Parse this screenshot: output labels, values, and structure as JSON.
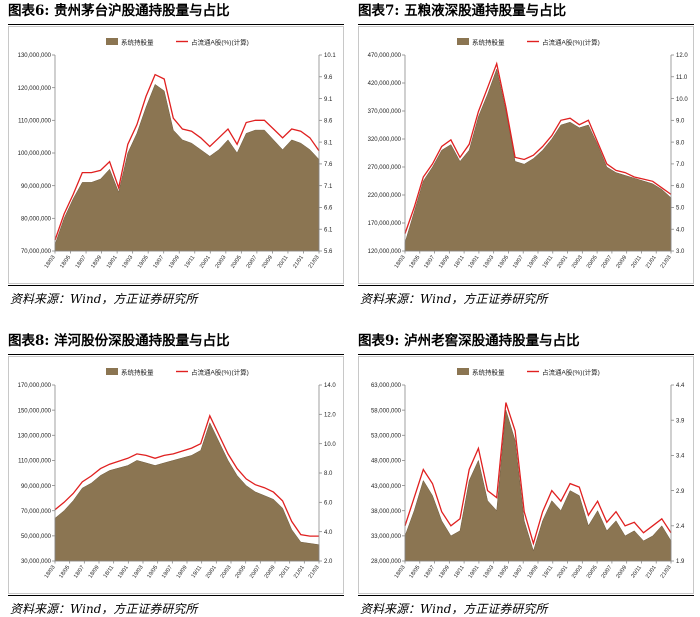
{
  "source_text": "资料来源：Wind，方正证券研究所",
  "panels": [
    {
      "title": "图表6:   贵州茅台沪股通持股量与占比",
      "chart_data": {
        "type": "area",
        "legend": [
          "系统持股量",
          "占流通A股(%)(计算)"
        ],
        "legend_position": "top-center",
        "grid": false,
        "left_axis": {
          "min": 70000000,
          "max": 130000000,
          "ticks": [
            "70,000,000",
            "80,000,000",
            "90,000,000",
            "100,000,000",
            "110,000,000",
            "120,000,000",
            "130,000,000"
          ]
        },
        "right_axis": {
          "min": 5.6,
          "max": 10.1,
          "ticks": [
            "5.6",
            "6.1",
            "6.6",
            "7.1",
            "7.6",
            "8.1",
            "8.6",
            "9.1",
            "9.6",
            "10.1"
          ]
        },
        "x_labels": [
          "18/03",
          "18/05",
          "18/07",
          "18/09",
          "19/01",
          "19/03",
          "19/05",
          "19/07",
          "19/09",
          "19/11",
          "20/01",
          "20/03",
          "20/05",
          "20/07",
          "20/09",
          "20/11",
          "21/01",
          "21/03"
        ],
        "holdings": [
          72000000,
          80000000,
          86000000,
          91000000,
          91000000,
          92000000,
          95000000,
          88000000,
          100000000,
          106000000,
          114000000,
          121000000,
          119000000,
          107000000,
          104000000,
          103000000,
          101000000,
          99000000,
          101000000,
          104000000,
          100000000,
          106000000,
          107000000,
          107000000,
          104000000,
          101000000,
          104000000,
          103000000,
          101000000,
          98000000
        ],
        "ratio": [
          5.85,
          6.45,
          6.9,
          7.4,
          7.4,
          7.45,
          7.65,
          7.05,
          8.05,
          8.5,
          9.15,
          9.65,
          9.55,
          8.65,
          8.4,
          8.35,
          8.2,
          8.0,
          8.2,
          8.4,
          8.05,
          8.55,
          8.6,
          8.6,
          8.4,
          8.2,
          8.4,
          8.35,
          8.2,
          7.9
        ]
      }
    },
    {
      "title": "图表7:   五粮液深股通持股量与占比",
      "chart_data": {
        "type": "area",
        "legend": [
          "系统持股量",
          "占流通A股(%)(计算)"
        ],
        "legend_position": "top-center",
        "grid": false,
        "left_axis": {
          "min": 120000000,
          "max": 470000000,
          "ticks": [
            "120,000,000",
            "170,000,000",
            "220,000,000",
            "270,000,000",
            "320,000,000",
            "370,000,000",
            "420,000,000",
            "470,000,000"
          ]
        },
        "right_axis": {
          "min": 3.0,
          "max": 12.0,
          "ticks": [
            "3.0",
            "4.0",
            "5.0",
            "6.0",
            "7.0",
            "8.0",
            "9.0",
            "10.0",
            "11.0",
            "12.0"
          ]
        },
        "x_labels": [
          "18/03",
          "18/05",
          "18/07",
          "18/09",
          "18/11",
          "19/01",
          "19/03",
          "19/05",
          "19/07",
          "19/09",
          "19/11",
          "20/01",
          "20/03",
          "20/05",
          "20/07",
          "20/09",
          "20/11",
          "21/01",
          "21/03"
        ],
        "holdings": [
          135000000,
          190000000,
          245000000,
          270000000,
          300000000,
          310000000,
          280000000,
          300000000,
          360000000,
          400000000,
          445000000,
          370000000,
          280000000,
          275000000,
          285000000,
          300000000,
          320000000,
          345000000,
          350000000,
          340000000,
          345000000,
          310000000,
          270000000,
          260000000,
          255000000,
          250000000,
          245000000,
          240000000,
          230000000,
          215000000
        ],
        "ratio": [
          3.8,
          5.0,
          6.4,
          7.0,
          7.8,
          8.1,
          7.3,
          7.9,
          9.4,
          10.5,
          11.6,
          9.6,
          7.3,
          7.2,
          7.4,
          7.8,
          8.3,
          9.0,
          9.1,
          8.8,
          9.0,
          8.0,
          7.0,
          6.7,
          6.6,
          6.4,
          6.3,
          6.2,
          5.9,
          5.6
        ]
      }
    },
    {
      "title": "图表8:   洋河股份深股通持股量与占比",
      "chart_data": {
        "type": "area",
        "legend": [
          "系统持股量",
          "占流通A股(%)(计算)"
        ],
        "legend_position": "top-center",
        "grid": false,
        "left_axis": {
          "min": 30000000,
          "max": 170000000,
          "ticks": [
            "30,000,000",
            "50,000,000",
            "70,000,000",
            "90,000,000",
            "110,000,000",
            "130,000,000",
            "150,000,000",
            "170,000,000"
          ]
        },
        "right_axis": {
          "min": 2.0,
          "max": 14.0,
          "ticks": [
            "2.0",
            "4.0",
            "6.0",
            "8.0",
            "10.0",
            "12.0",
            "14.0"
          ]
        },
        "x_labels": [
          "18/03",
          "18/05",
          "18/07",
          "18/09",
          "18/11",
          "19/01",
          "19/03",
          "19/05",
          "19/07",
          "19/09",
          "19/11",
          "20/01",
          "20/03",
          "20/05",
          "20/07",
          "20/09",
          "20/11",
          "21/01",
          "21/03"
        ],
        "holdings": [
          64000000,
          70000000,
          78000000,
          88000000,
          92000000,
          98000000,
          102000000,
          104000000,
          106000000,
          110000000,
          108000000,
          106000000,
          108000000,
          110000000,
          112000000,
          114000000,
          118000000,
          140000000,
          125000000,
          110000000,
          98000000,
          90000000,
          85000000,
          82000000,
          79000000,
          72000000,
          55000000,
          45000000,
          44000000,
          43000000
        ],
        "ratio": [
          5.5,
          6.0,
          6.6,
          7.4,
          7.8,
          8.3,
          8.6,
          8.8,
          9.0,
          9.3,
          9.2,
          9.0,
          9.2,
          9.3,
          9.5,
          9.7,
          10.0,
          11.9,
          10.6,
          9.3,
          8.3,
          7.6,
          7.2,
          7.0,
          6.7,
          6.1,
          4.7,
          3.8,
          3.7,
          3.7
        ]
      }
    },
    {
      "title": "图表9:   泸州老窖深股通持股量与占比",
      "chart_data": {
        "type": "area",
        "legend": [
          "系统持股量",
          "占流通A股(%)(计算)"
        ],
        "legend_position": "top-center",
        "grid": false,
        "left_axis": {
          "min": 28000000,
          "max": 63000000,
          "ticks": [
            "28,000,000",
            "33,000,000",
            "38,000,000",
            "43,000,000",
            "48,000,000",
            "53,000,000",
            "58,000,000",
            "63,000,000"
          ]
        },
        "right_axis": {
          "min": 1.9,
          "max": 4.4,
          "ticks": [
            "1.9",
            "2.4",
            "2.9",
            "3.4",
            "3.9",
            "4.4"
          ]
        },
        "x_labels": [
          "18/03",
          "18/05",
          "18/07",
          "18/09",
          "18/11",
          "19/01",
          "19/03",
          "19/05",
          "19/07",
          "19/09",
          "19/11",
          "20/01",
          "20/03",
          "20/05",
          "20/07",
          "20/09",
          "20/11",
          "21/01",
          "21/03"
        ],
        "holdings": [
          33000000,
          38000000,
          44000000,
          41000000,
          36000000,
          33000000,
          34000000,
          44000000,
          48000000,
          40000000,
          38000000,
          58000000,
          52000000,
          36000000,
          30000000,
          36000000,
          40000000,
          38000000,
          42000000,
          41000000,
          35000000,
          38000000,
          34000000,
          36000000,
          33000000,
          34000000,
          32000000,
          33000000,
          35000000,
          32000000
        ],
        "ratio": [
          2.4,
          2.8,
          3.2,
          3.0,
          2.6,
          2.4,
          2.5,
          3.2,
          3.5,
          2.9,
          2.8,
          4.15,
          3.75,
          2.6,
          2.15,
          2.6,
          2.9,
          2.75,
          3.0,
          2.95,
          2.55,
          2.75,
          2.45,
          2.6,
          2.4,
          2.45,
          2.3,
          2.4,
          2.5,
          2.3
        ]
      }
    }
  ]
}
